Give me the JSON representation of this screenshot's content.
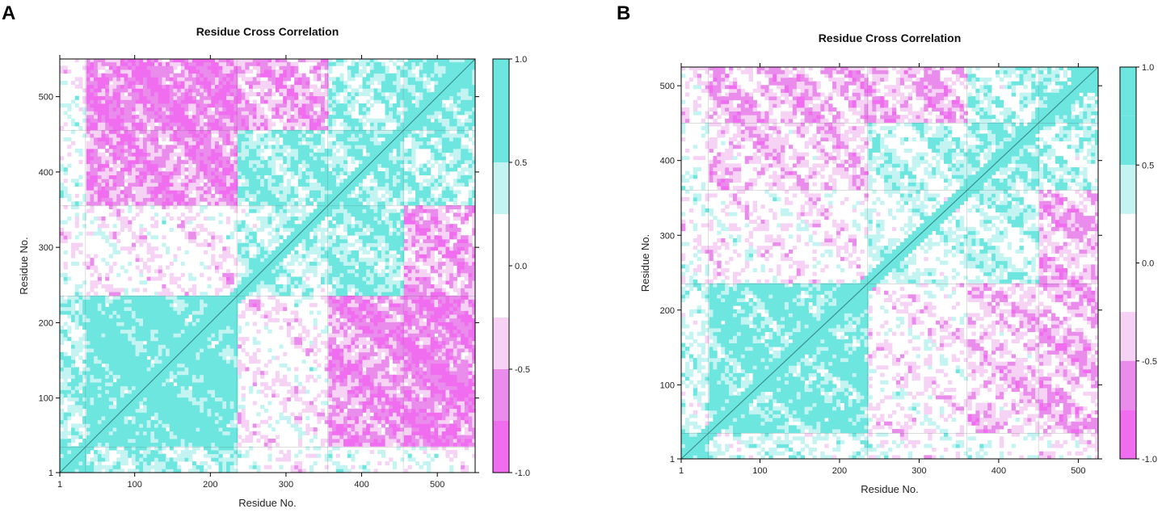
{
  "chart_data": [
    {
      "panel_label": "A",
      "type": "heatmap",
      "title": "Residue Cross Correlation",
      "xlabel": "Residue No.",
      "ylabel": "Residue No.",
      "xlim": [
        1,
        550
      ],
      "ylim": [
        1,
        550
      ],
      "xticks": [
        "1",
        "100",
        "200",
        "300",
        "400",
        "500"
      ],
      "yticks": [
        "1",
        "100",
        "200",
        "300",
        "400",
        "500"
      ],
      "xtick_values": [
        1,
        100,
        200,
        300,
        400,
        500
      ],
      "ytick_values": [
        1,
        100,
        200,
        300,
        400,
        500
      ],
      "colorbar": {
        "range": [
          -1.0,
          1.0
        ],
        "ticks": [
          "1.0",
          "0.5",
          "0.0",
          "-0.5",
          "-1.0"
        ],
        "tick_values": [
          1.0,
          0.5,
          0.0,
          -0.5,
          -1.0
        ]
      },
      "domain_boundaries": [
        35,
        235,
        355,
        455
      ]
    },
    {
      "panel_label": "B",
      "type": "heatmap",
      "title": "Residue Cross Correlation",
      "xlabel": "Residue No.",
      "ylabel": "Residue No.",
      "xlim": [
        1,
        525
      ],
      "ylim": [
        1,
        525
      ],
      "xticks": [
        "1",
        "100",
        "200",
        "300",
        "400",
        "500"
      ],
      "yticks": [
        "1",
        "100",
        "200",
        "300",
        "400",
        "500"
      ],
      "xtick_values": [
        1,
        100,
        200,
        300,
        400,
        500
      ],
      "ytick_values": [
        1,
        100,
        200,
        300,
        400,
        500
      ],
      "colorbar": {
        "range": [
          -1.0,
          1.0
        ],
        "ticks": [
          "1.0",
          "0.5",
          "0.0",
          "-0.5",
          "-1.0"
        ],
        "tick_values": [
          1.0,
          0.5,
          0.0,
          -0.5,
          -1.0
        ]
      },
      "domain_boundaries": [
        35,
        235,
        360,
        450
      ]
    }
  ],
  "colors": {
    "positive": "#6ee6e0",
    "positive_light": "#c4f4f2",
    "neutral": "#ffffff",
    "negative_light": "#f6d2f4",
    "negative": "#ea8cec",
    "negative_strong": "#f06df0"
  }
}
